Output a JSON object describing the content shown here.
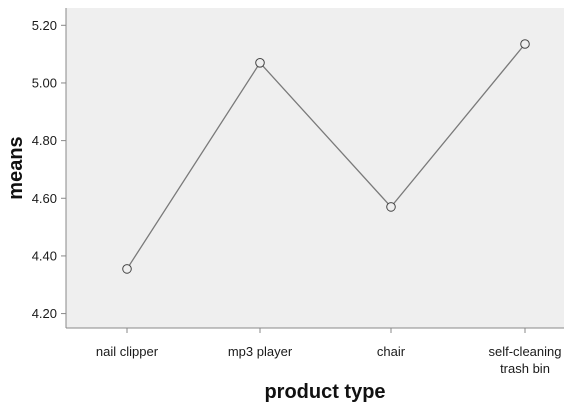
{
  "chart_data": {
    "type": "line",
    "title": "",
    "xlabel": "product type",
    "ylabel": "means",
    "categories": [
      "nail clipper",
      "mp3 player",
      "chair",
      "self-cleaning trash bin"
    ],
    "category_label_lines": [
      [
        "nail clipper"
      ],
      [
        "mp3 player"
      ],
      [
        "chair"
      ],
      [
        "self-cleaning",
        "trash bin"
      ]
    ],
    "values": [
      4.355,
      5.07,
      4.57,
      5.135
    ],
    "ylim": [
      4.15,
      5.26
    ],
    "yticks": [
      4.2,
      4.4,
      4.6,
      4.8,
      5.0,
      5.2
    ],
    "ytick_labels": [
      "4.20",
      "4.40",
      "4.60",
      "4.80",
      "5.00",
      "5.20"
    ],
    "grid": false,
    "legend": "none",
    "colors": {
      "plot_background": "#efefef",
      "line": "#7a7a7a",
      "marker_edge": "#444444",
      "axis": "#888888"
    }
  }
}
